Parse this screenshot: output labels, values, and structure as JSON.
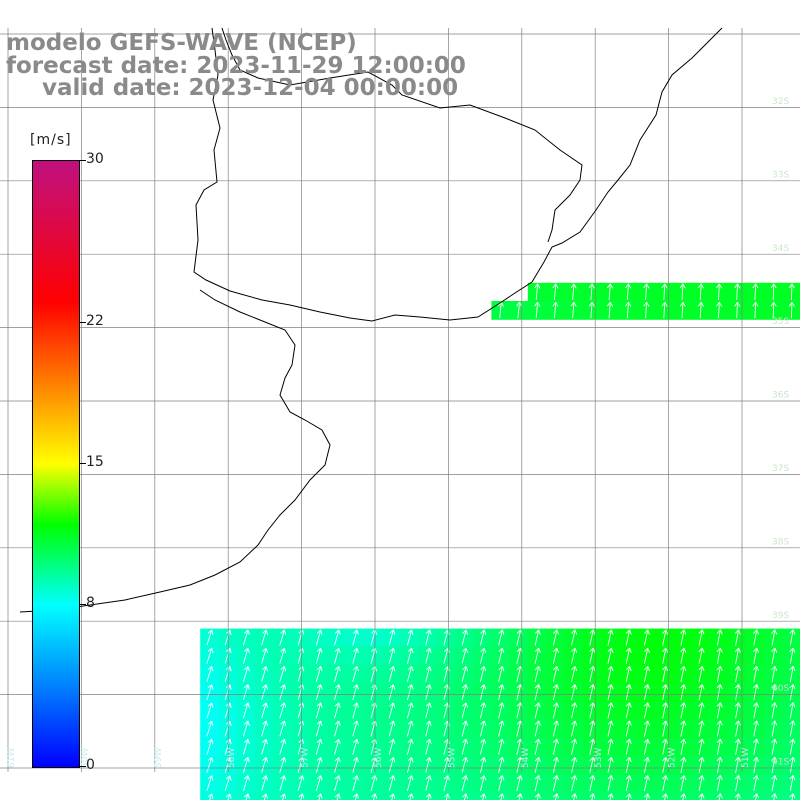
{
  "title": {
    "line1": "modelo GEFS-WAVE (NCEP)",
    "line2": "forecast date: 2023-11-29 12:00:00",
    "line3": "valid date: 2023-12-04 00:00:00"
  },
  "colorbar": {
    "unit": "[m/s]",
    "ticks": [
      "30",
      "22",
      "15",
      "8",
      "0"
    ],
    "tick_values": [
      30,
      22,
      15,
      8,
      0
    ],
    "min": 0,
    "max": 30,
    "stops": [
      {
        "value": 0,
        "color": "#0000ff"
      },
      {
        "value": 4,
        "color": "#0080ff"
      },
      {
        "value": 8,
        "color": "#00ffff"
      },
      {
        "value": 12,
        "color": "#00ff00"
      },
      {
        "value": 15,
        "color": "#ffff00"
      },
      {
        "value": 19,
        "color": "#ff8000"
      },
      {
        "value": 23,
        "color": "#ff0000"
      },
      {
        "value": 30,
        "color": "#c01080"
      }
    ]
  },
  "colors": {
    "land": "#ffffff",
    "coastline": "#000000",
    "grid": "#808080",
    "arrows": "#ffffff",
    "title_text": "#8a8a8a"
  },
  "icons": [
    "wind-arrow-icon"
  ],
  "wind_field": {
    "description_units": "m/s",
    "arrow_direction": "from south-southwest toward north-northeast",
    "lat_labels": [
      "32S",
      "33S",
      "34S",
      "35S",
      "36S",
      "37S",
      "38S",
      "39S",
      "40S",
      "41S"
    ],
    "lon_labels": [
      "61W",
      "60W",
      "59W",
      "58W",
      "57W",
      "56W",
      "55W",
      "54W",
      "53W",
      "52W",
      "51W"
    ]
  }
}
